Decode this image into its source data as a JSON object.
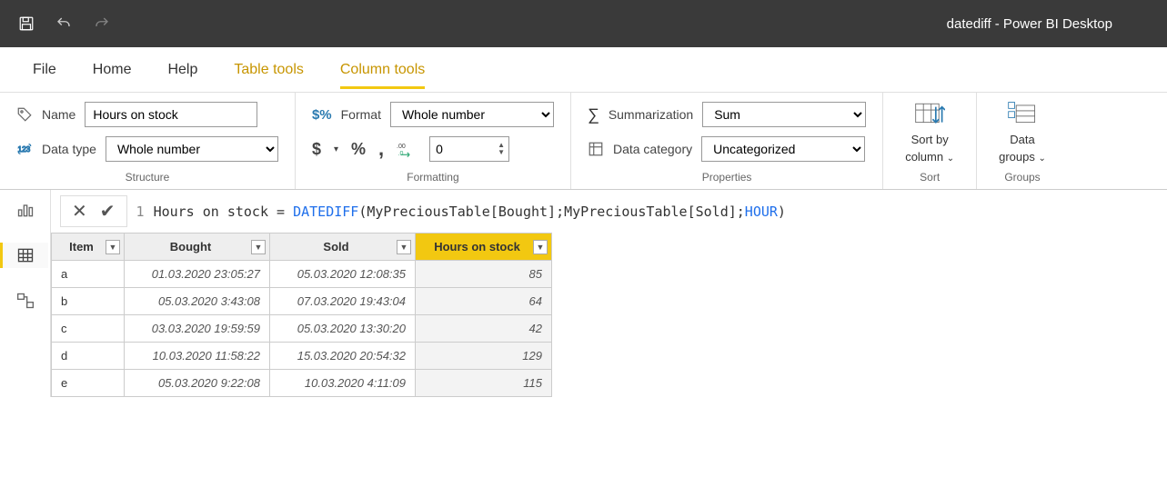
{
  "colors": {
    "brand_yellow": "#f2c811",
    "title_bg": "#3a3a3a"
  },
  "titlebar": {
    "title": "datediff - Power BI Desktop"
  },
  "menu": {
    "items": [
      {
        "label": "File",
        "context": false,
        "active": false
      },
      {
        "label": "Home",
        "context": false,
        "active": false
      },
      {
        "label": "Help",
        "context": false,
        "active": false
      },
      {
        "label": "Table tools",
        "context": true,
        "active": false
      },
      {
        "label": "Column tools",
        "context": true,
        "active": true
      }
    ]
  },
  "ribbon": {
    "structure": {
      "group_label": "Structure",
      "name_label": "Name",
      "name_value": "Hours on stock",
      "datatype_label": "Data type",
      "datatype_value": "Whole number"
    },
    "formatting": {
      "group_label": "Formatting",
      "format_label": "Format",
      "format_value": "Whole number",
      "decimals_value": "0",
      "currency_symbol": "$",
      "percent_symbol": "%",
      "thousands_symbol": ","
    },
    "properties": {
      "group_label": "Properties",
      "summarization_label": "Summarization",
      "summarization_value": "Sum",
      "category_label": "Data category",
      "category_value": "Uncategorized"
    },
    "sort": {
      "group_label": "Sort",
      "btn_line1": "Sort by",
      "btn_line2": "column"
    },
    "groups": {
      "group_label": "Groups",
      "btn_line1": "Data",
      "btn_line2": "groups"
    }
  },
  "formula": {
    "line_no": "1",
    "lhs": "Hours on stock = ",
    "fn": "DATEDIFF",
    "arg1": "MyPreciousTable[Bought]",
    "arg2": "MyPreciousTable[Sold]",
    "kw": "HOUR",
    "plain": "Hours on stock = DATEDIFF(MyPreciousTable[Bought];MyPreciousTable[Sold];HOUR)"
  },
  "table": {
    "columns": [
      {
        "label": "Item",
        "width": 80,
        "active": false,
        "type": "item"
      },
      {
        "label": "Bought",
        "width": 160,
        "active": false,
        "type": "dt"
      },
      {
        "label": "Sold",
        "width": 160,
        "active": false,
        "type": "dt"
      },
      {
        "label": "Hours on stock",
        "width": 150,
        "active": true,
        "type": "num"
      }
    ],
    "rows": [
      [
        "a",
        "01.03.2020 23:05:27",
        "05.03.2020 12:08:35",
        "85"
      ],
      [
        "b",
        "05.03.2020 3:43:08",
        "07.03.2020 19:43:04",
        "64"
      ],
      [
        "c",
        "03.03.2020 19:59:59",
        "05.03.2020 13:30:20",
        "42"
      ],
      [
        "d",
        "10.03.2020 11:58:22",
        "15.03.2020 20:54:32",
        "129"
      ],
      [
        "e",
        "05.03.2020 9:22:08",
        "10.03.2020 4:11:09",
        "115"
      ]
    ]
  }
}
